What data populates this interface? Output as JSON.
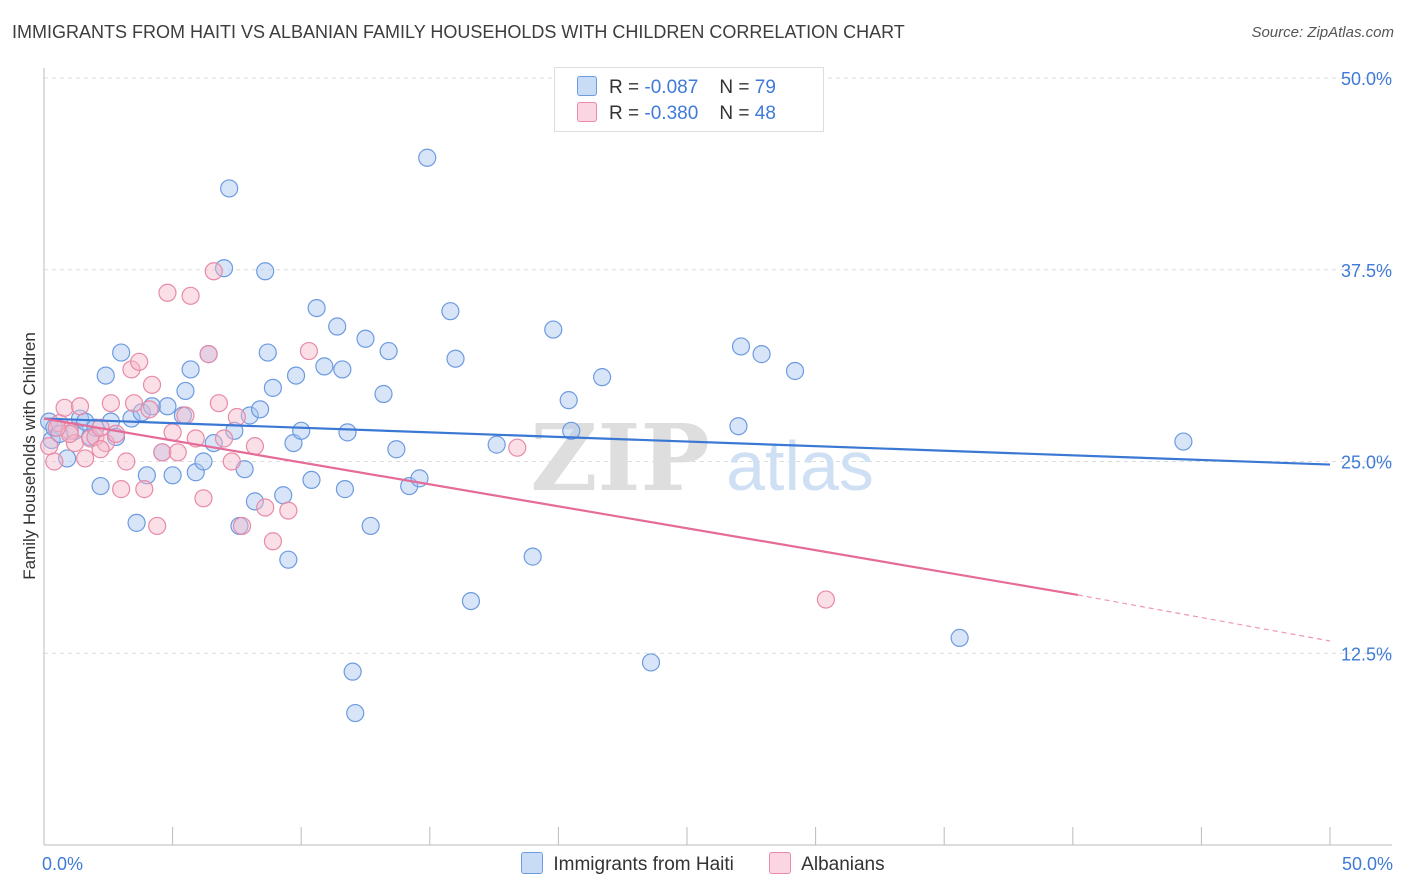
{
  "title": "IMMIGRANTS FROM HAITI VS ALBANIAN FAMILY HOUSEHOLDS WITH CHILDREN CORRELATION CHART",
  "source": "Source: ZipAtlas.com",
  "watermark": {
    "zip": "ZIP",
    "atlas": "atlas"
  },
  "stats": [
    {
      "r_label": "R =",
      "r_value": "-0.087",
      "n_label": "N =",
      "n_value": "79",
      "color": "#a8c6f0"
    },
    {
      "r_label": "R =",
      "r_value": "-0.380",
      "n_label": "N =",
      "n_value": "48",
      "color": "#f5b7ca"
    }
  ],
  "chart_data": {
    "type": "scatter",
    "title": "IMMIGRANTS FROM HAITI VS ALBANIAN FAMILY HOUSEHOLDS WITH CHILDREN CORRELATION CHART",
    "xlabel": "",
    "ylabel": "Family Households with Children",
    "xlim": [
      0,
      50
    ],
    "ylim": [
      0,
      50
    ],
    "x_tick_labels": [
      "0.0%",
      "50.0%"
    ],
    "y_ticks": [
      12.5,
      25.0,
      37.5,
      50.0
    ],
    "y_tick_labels": [
      "12.5%",
      "25.0%",
      "37.5%",
      "50.0%"
    ],
    "grid": true,
    "legend_position": "bottom",
    "series": [
      {
        "name": "Immigrants from Haiti",
        "color": "#a8c6f0",
        "edge": "#6d9be0",
        "line_color": "#3a78d4",
        "trend": {
          "x0": 0,
          "y0": 27.8,
          "x1": 50,
          "y1": 24.8
        },
        "points": [
          [
            0.2,
            27.6
          ],
          [
            0.3,
            26.4
          ],
          [
            0.4,
            27.2
          ],
          [
            0.6,
            26.8
          ],
          [
            0.9,
            25.2
          ],
          [
            1.2,
            27.0
          ],
          [
            1.4,
            27.8
          ],
          [
            1.6,
            27.6
          ],
          [
            1.8,
            26.6
          ],
          [
            2.0,
            27.2
          ],
          [
            2.2,
            23.4
          ],
          [
            2.4,
            30.6
          ],
          [
            2.6,
            27.6
          ],
          [
            2.8,
            26.6
          ],
          [
            3.0,
            32.1
          ],
          [
            3.4,
            27.8
          ],
          [
            3.6,
            21.0
          ],
          [
            3.8,
            28.2
          ],
          [
            4.0,
            24.1
          ],
          [
            4.2,
            28.6
          ],
          [
            4.6,
            25.6
          ],
          [
            4.8,
            28.6
          ],
          [
            5.0,
            24.1
          ],
          [
            5.4,
            28.0
          ],
          [
            5.5,
            29.6
          ],
          [
            5.7,
            31.0
          ],
          [
            5.9,
            24.3
          ],
          [
            6.2,
            25.0
          ],
          [
            6.4,
            32.0
          ],
          [
            6.6,
            26.2
          ],
          [
            7.0,
            37.6
          ],
          [
            7.2,
            42.8
          ],
          [
            7.4,
            27.0
          ],
          [
            7.6,
            20.8
          ],
          [
            7.8,
            24.5
          ],
          [
            8.0,
            28.0
          ],
          [
            8.2,
            22.4
          ],
          [
            8.4,
            28.4
          ],
          [
            8.6,
            37.4
          ],
          [
            8.7,
            32.1
          ],
          [
            8.9,
            29.8
          ],
          [
            9.3,
            22.8
          ],
          [
            9.5,
            18.6
          ],
          [
            9.7,
            26.2
          ],
          [
            9.8,
            30.6
          ],
          [
            10.0,
            27.0
          ],
          [
            10.4,
            23.8
          ],
          [
            10.6,
            35.0
          ],
          [
            10.9,
            31.2
          ],
          [
            11.4,
            33.8
          ],
          [
            11.6,
            31.0
          ],
          [
            11.7,
            23.2
          ],
          [
            11.8,
            26.9
          ],
          [
            12.0,
            11.3
          ],
          [
            12.5,
            33.0
          ],
          [
            12.7,
            20.8
          ],
          [
            13.4,
            32.2
          ],
          [
            13.2,
            29.4
          ],
          [
            13.7,
            25.8
          ],
          [
            14.2,
            23.4
          ],
          [
            14.6,
            23.9
          ],
          [
            14.9,
            44.8
          ],
          [
            15.8,
            34.8
          ],
          [
            16.0,
            31.7
          ],
          [
            16.6,
            15.9
          ],
          [
            17.6,
            26.1
          ],
          [
            19.0,
            18.8
          ],
          [
            19.8,
            33.6
          ],
          [
            20.4,
            29.0
          ],
          [
            20.5,
            27.0
          ],
          [
            21.7,
            30.5
          ],
          [
            23.6,
            11.9
          ],
          [
            27.0,
            27.3
          ],
          [
            27.1,
            32.5
          ],
          [
            27.9,
            32.0
          ],
          [
            29.2,
            30.9
          ],
          [
            35.6,
            13.5
          ],
          [
            44.3,
            26.3
          ],
          [
            12.1,
            8.6
          ]
        ]
      },
      {
        "name": "Albanians",
        "color": "#f5b7ca",
        "edge": "#e88aa8",
        "line_color": "#e56b98",
        "trend": {
          "x0": 0,
          "y0": 27.8,
          "x1": 40.2,
          "y1": 16.3,
          "dash_x1": 50,
          "dash_y1": 13.3
        },
        "points": [
          [
            0.2,
            26.0
          ],
          [
            0.4,
            25.0
          ],
          [
            0.6,
            27.5
          ],
          [
            0.8,
            28.5
          ],
          [
            1.0,
            27.0
          ],
          [
            1.2,
            26.2
          ],
          [
            1.4,
            28.6
          ],
          [
            1.6,
            25.2
          ],
          [
            1.8,
            26.5
          ],
          [
            2.0,
            26.6
          ],
          [
            2.2,
            27.2
          ],
          [
            2.4,
            26.2
          ],
          [
            2.6,
            28.8
          ],
          [
            2.8,
            26.8
          ],
          [
            3.0,
            23.2
          ],
          [
            3.2,
            25.0
          ],
          [
            3.4,
            31.0
          ],
          [
            3.5,
            28.8
          ],
          [
            3.7,
            31.5
          ],
          [
            3.9,
            23.2
          ],
          [
            4.1,
            28.4
          ],
          [
            4.2,
            30.0
          ],
          [
            4.4,
            20.8
          ],
          [
            4.6,
            25.6
          ],
          [
            4.8,
            36.0
          ],
          [
            5.0,
            26.9
          ],
          [
            5.2,
            25.6
          ],
          [
            5.5,
            28.0
          ],
          [
            5.7,
            35.8
          ],
          [
            5.9,
            26.5
          ],
          [
            6.2,
            22.6
          ],
          [
            6.4,
            32.0
          ],
          [
            6.6,
            37.4
          ],
          [
            6.8,
            28.8
          ],
          [
            7.0,
            26.5
          ],
          [
            7.3,
            25.0
          ],
          [
            7.5,
            27.9
          ],
          [
            7.7,
            20.8
          ],
          [
            8.2,
            26.0
          ],
          [
            8.6,
            22.0
          ],
          [
            8.9,
            19.8
          ],
          [
            9.5,
            21.8
          ],
          [
            10.3,
            32.2
          ],
          [
            18.4,
            25.9
          ],
          [
            30.4,
            16.0
          ],
          [
            1.0,
            26.8
          ],
          [
            0.5,
            27.2
          ],
          [
            2.2,
            25.8
          ]
        ]
      }
    ]
  }
}
